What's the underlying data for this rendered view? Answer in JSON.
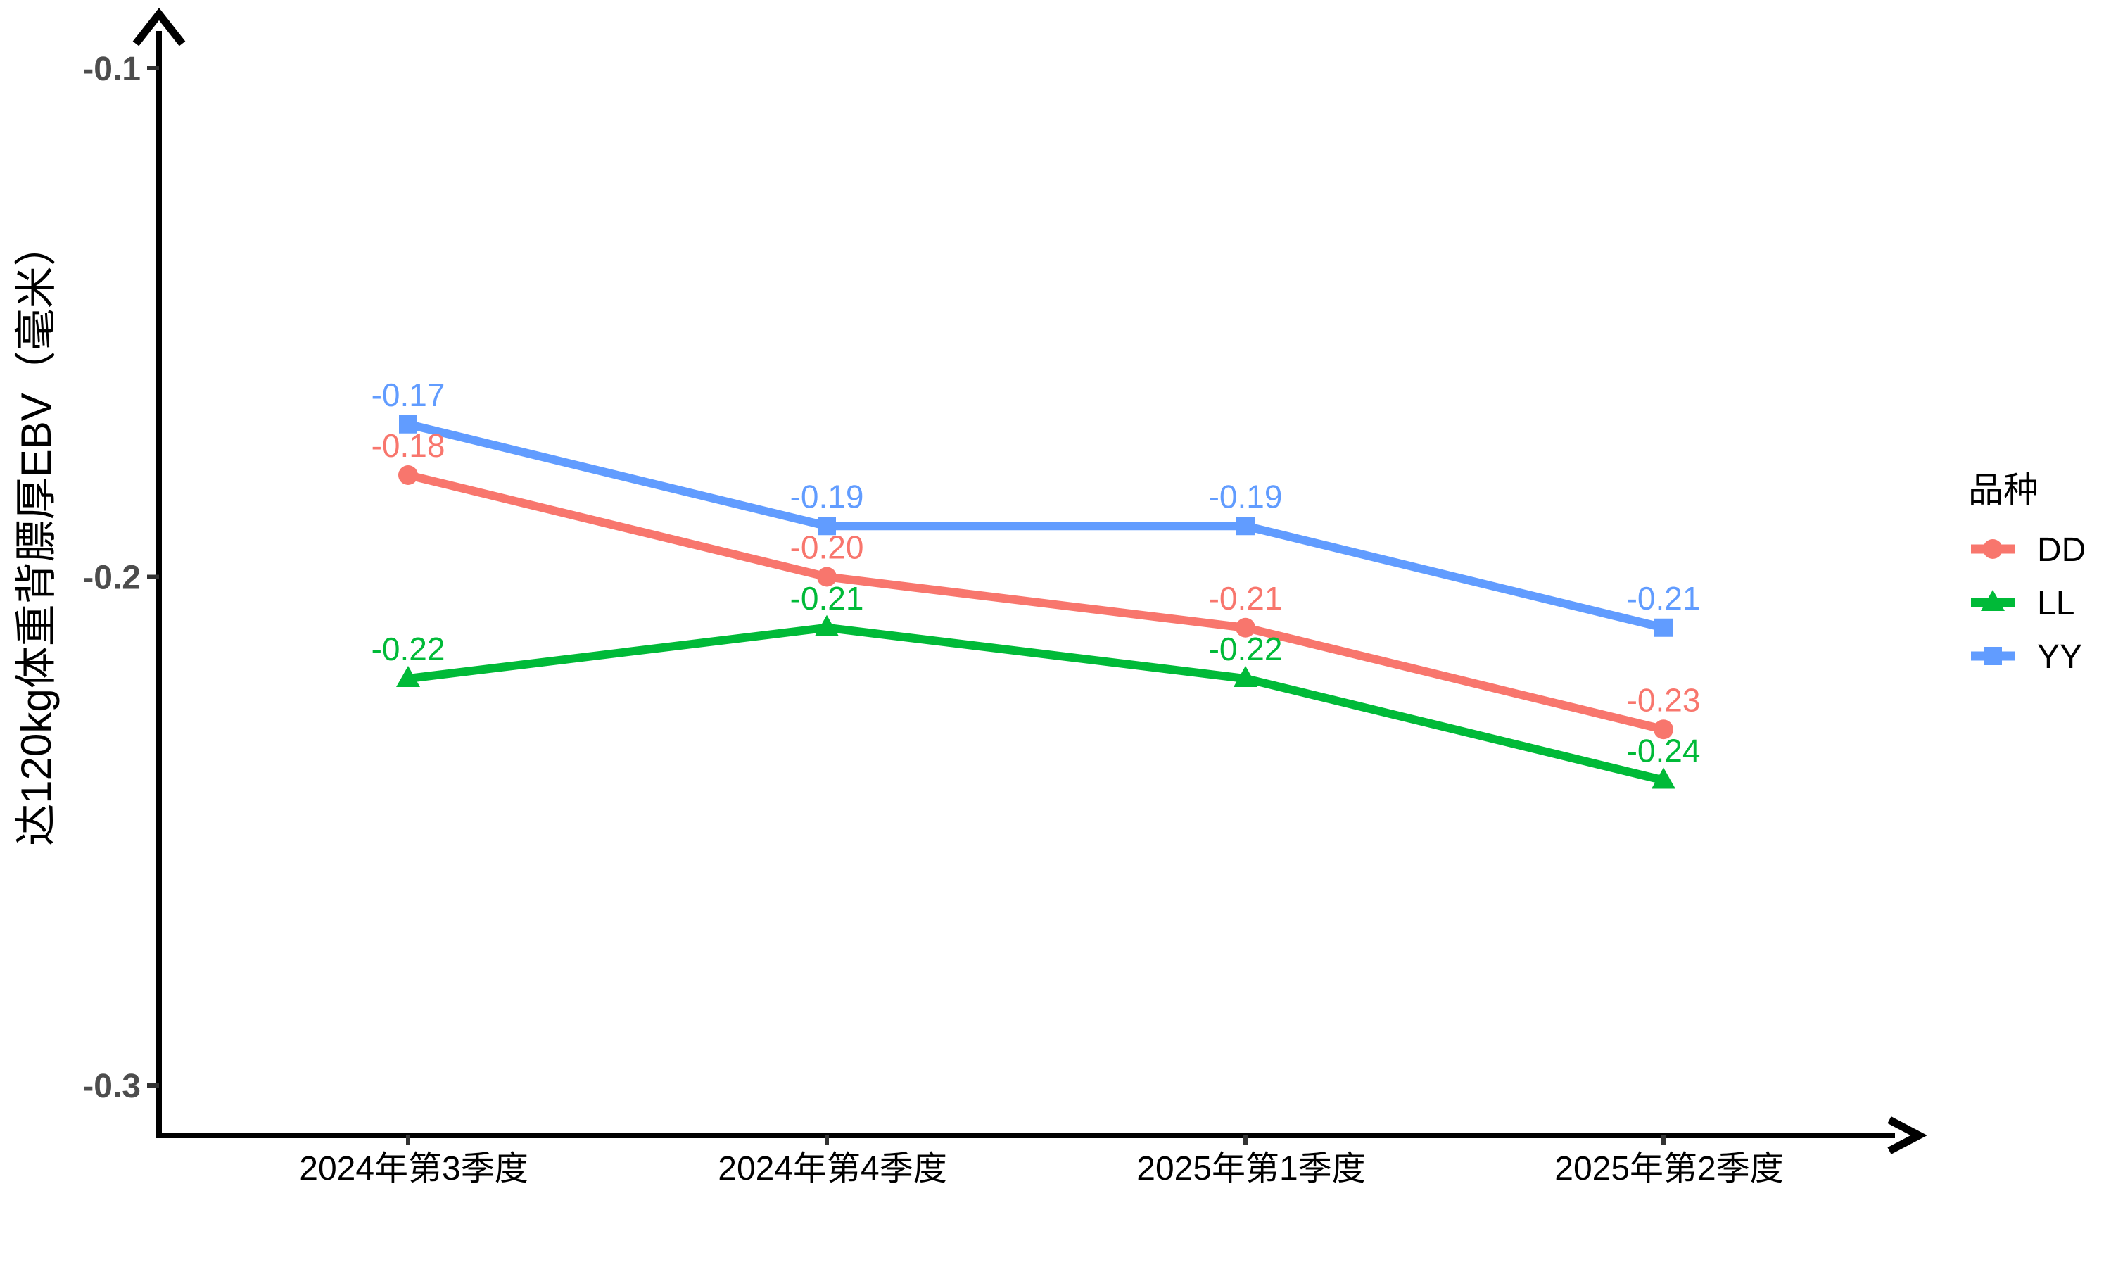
{
  "chart_data": {
    "type": "line",
    "title": "",
    "xlabel": "",
    "ylabel": "达120kg体重背膘厚EBV（毫米）",
    "categories": [
      "2024年第3季度",
      "2024年第4季度",
      "2025年第1季度",
      "2025年第2季度"
    ],
    "series": [
      {
        "name": "DD",
        "color": "#F8766D",
        "marker": "circle",
        "values": [
          -0.18,
          -0.2,
          -0.21,
          -0.23
        ],
        "labels": [
          "-0.18",
          "-0.20",
          "-0.21",
          "-0.23"
        ]
      },
      {
        "name": "LL",
        "color": "#00BA38",
        "marker": "triangle",
        "values": [
          -0.22,
          -0.21,
          -0.22,
          -0.24
        ],
        "labels": [
          "-0.22",
          "-0.21",
          "-0.22",
          "-0.24"
        ]
      },
      {
        "name": "YY",
        "color": "#619CFF",
        "marker": "square",
        "values": [
          -0.17,
          -0.19,
          -0.19,
          -0.21
        ],
        "labels": [
          "-0.17",
          "-0.19",
          "-0.19",
          "-0.21"
        ]
      }
    ],
    "y_ticks": [
      -0.1,
      -0.2,
      -0.3
    ],
    "y_tick_labels": [
      "-0.1",
      "-0.2",
      "-0.3"
    ],
    "ylim": [
      -0.31,
      -0.089
    ],
    "grid": false,
    "legend": {
      "title": "品种",
      "position": "right",
      "entries": [
        "DD",
        "LL",
        "YY"
      ]
    },
    "colors": {
      "axis": "#000000",
      "tick_mark": "#333333",
      "y_tick_label": "#4d4d4d",
      "x_tick_label": "#000000",
      "axis_title": "#000000",
      "background": "#ffffff"
    }
  }
}
